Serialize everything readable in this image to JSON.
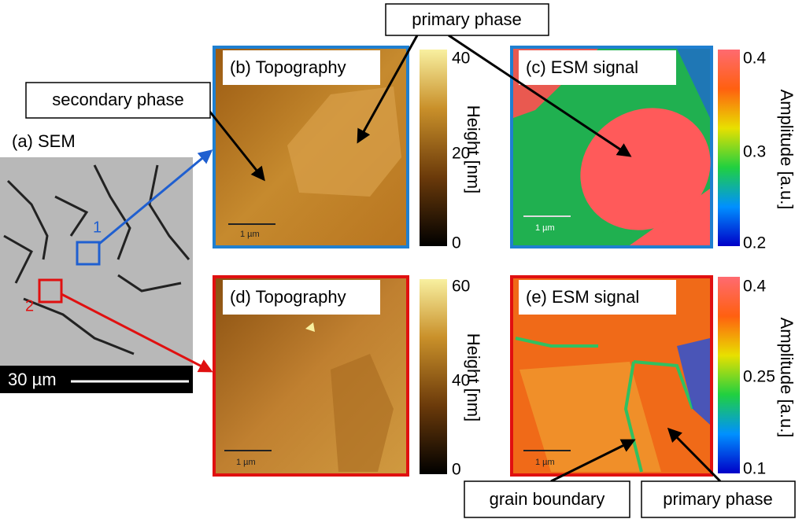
{
  "panels": [
    {
      "label": "(a) SEM",
      "scale_bar": "30 µm",
      "markers": [
        "1",
        "2"
      ]
    },
    {
      "label": "(b) Topography",
      "scale_bar": "1 µm",
      "colorbar": {
        "label": "Height [nm]",
        "ticks": [
          40,
          20,
          0
        ]
      }
    },
    {
      "label": "(c) ESM signal",
      "scale_bar": "1 µm",
      "colorbar": {
        "label": "Amplitude [a.u.]",
        "ticks": [
          0.4,
          0.3,
          0.2
        ]
      }
    },
    {
      "label": "(d) Topography",
      "scale_bar": "1 µm",
      "colorbar": {
        "label": "Height [nm]",
        "ticks": [
          60,
          40,
          0
        ]
      }
    },
    {
      "label": "(e) ESM signal",
      "scale_bar": "1 µm",
      "colorbar": {
        "label": "Amplitude [a.u.]",
        "ticks": [
          0.4,
          0.25,
          0.1
        ]
      }
    }
  ],
  "annotations": [
    "secondary phase",
    "primary phase",
    "grain boundary",
    "primary phase"
  ]
}
